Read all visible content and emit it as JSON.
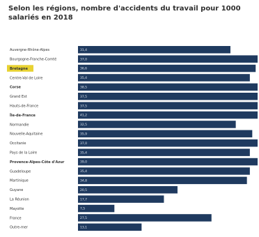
{
  "chart_data": {
    "type": "bar",
    "orientation": "horizontal",
    "title": "Selon les régions, nombre d'accidents du travail pour 1000 salariés en 2018",
    "xlabel": "",
    "ylabel": "",
    "xlim": [
      0,
      37
    ],
    "grid": false,
    "legend": "none",
    "categories": [
      "Auvergne-Rhône-Alpes",
      "Bourgogne-Franche-Comté",
      "Bretagne",
      "Centre-Val de Loire",
      "Corse",
      "Grand Est",
      "Hauts-de-France",
      "Île-de-France",
      "Normandie",
      "Nouvelle-Aquitaine",
      "Occitanie",
      "Pays de la Loire",
      "Provence-Alpes-Côte d'Azur",
      "Guadeloupe",
      "Martinique",
      "Guyane",
      "La Réunion",
      "Mayotte",
      "France",
      "Outre-mer"
    ],
    "values": [
      31.4,
      37.0,
      36.6,
      35.4,
      38.5,
      37.5,
      37.5,
      41.2,
      32.5,
      35.9,
      37.0,
      35.4,
      39.0,
      35.4,
      34.8,
      20.5,
      17.7,
      7.5,
      27.5,
      13.1
    ],
    "value_labels": [
      "31,4",
      "37,0",
      "36,6",
      "35,4",
      "38,5",
      "37,5",
      "37,5",
      "41,2",
      "32,5",
      "35,9",
      "37,0",
      "35,4",
      "39,0",
      "35,4",
      "34,8",
      "20,5",
      "17,7",
      "7,5",
      "27,5",
      "13,1"
    ],
    "highlighted_categories": [
      "Bretagne"
    ],
    "bold_categories": [
      "Bretagne",
      "Corse",
      "Île-de-France",
      "Provence-Alpes-Côte d'Azur"
    ],
    "colors": {
      "bar": "#1f3a5f",
      "highlight": "#e8d232",
      "value_label": "#dfe6ef"
    }
  }
}
